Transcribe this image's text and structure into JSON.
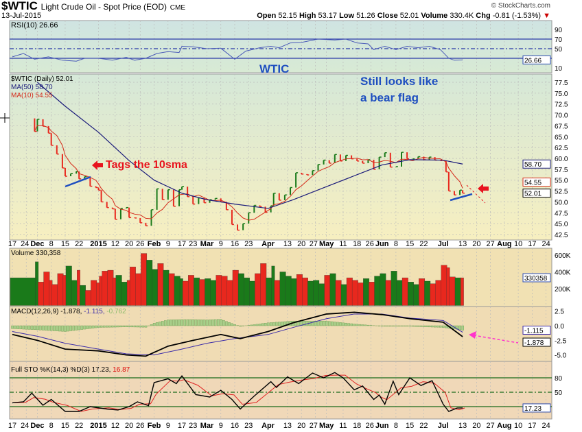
{
  "header": {
    "symbol": "$WTIC",
    "name": "Light Crude Oil - Spot Price (EOD)",
    "exchange": "CME",
    "date": "13-Jul-2015",
    "credit": "© StockCharts.com",
    "open_label": "Open",
    "open": "52.15",
    "high_label": "High",
    "high": "53.17",
    "low_label": "Low",
    "low": "51.26",
    "close_label": "Close",
    "close": "52.01",
    "volume_label": "Volume",
    "volume": "330.4K",
    "chg_label": "Chg",
    "chg": "-0.81 (-1.53%)"
  },
  "annotations": {
    "wtic": "WTIC",
    "bear_flag_1": "Still looks like",
    "bear_flag_2": "a bear flag",
    "tags": "Tags the 10sma"
  },
  "colors": {
    "up": "#1a7a1a",
    "down": "#e8281e",
    "ma50": "#1a1a7a",
    "ma10": "#d42a1a",
    "rsi": "#4a5ab8",
    "annotation_blue": "#1f4fc0",
    "annotation_red": "#e8141e",
    "arrow_magenta": "#ff33cc"
  },
  "chart_data": {
    "type": "line",
    "x_ticks": [
      [
        "2014-11-17",
        "17",
        false
      ],
      [
        "2014-11-24",
        "24",
        false
      ],
      [
        "2014-12-01",
        "Dec",
        true
      ],
      [
        "2014-12-08",
        "8",
        false
      ],
      [
        "2014-12-15",
        "15",
        false
      ],
      [
        "2014-12-22",
        "22",
        false
      ],
      [
        "2015-01-02",
        "2015",
        true
      ],
      [
        "2015-01-12",
        "12",
        false
      ],
      [
        "2015-01-20",
        "20",
        false
      ],
      [
        "2015-01-26",
        "26",
        false
      ],
      [
        "2015-02-02",
        "Feb",
        true
      ],
      [
        "2015-02-09",
        "9",
        false
      ],
      [
        "2015-02-17",
        "17",
        false
      ],
      [
        "2015-02-23",
        "23",
        false
      ],
      [
        "2015-03-02",
        "Mar",
        true
      ],
      [
        "2015-03-09",
        "9",
        false
      ],
      [
        "2015-03-16",
        "16",
        false
      ],
      [
        "2015-03-23",
        "23",
        false
      ],
      [
        "2015-04-01",
        "Apr",
        true
      ],
      [
        "2015-04-13",
        "13",
        false
      ],
      [
        "2015-04-20",
        "20",
        false
      ],
      [
        "2015-04-27",
        "27",
        false
      ],
      [
        "2015-05-01",
        "May",
        true
      ],
      [
        "2015-05-11",
        "11",
        false
      ],
      [
        "2015-05-18",
        "18",
        false
      ],
      [
        "2015-05-26",
        "26",
        false
      ],
      [
        "2015-06-01",
        "Jun",
        true
      ],
      [
        "2015-06-08",
        "8",
        false
      ],
      [
        "2015-06-15",
        "15",
        false
      ],
      [
        "2015-06-22",
        "22",
        false
      ],
      [
        "2015-07-01",
        "Jul",
        true
      ],
      [
        "2015-07-13",
        "13",
        false
      ],
      [
        "2015-07-20",
        "20",
        false
      ],
      [
        "2015-07-27",
        "27",
        false
      ],
      [
        "2015-08-03",
        "Aug",
        true
      ],
      [
        "2015-08-10",
        "10",
        false
      ],
      [
        "2015-08-17",
        "17",
        false
      ],
      [
        "2015-08-24",
        "24",
        false
      ]
    ],
    "rsi": {
      "legend": "RSI(10) 26.66",
      "last": "26.66",
      "ticks": [
        "90",
        "70",
        "50",
        "10"
      ],
      "levels": [
        70,
        50,
        30
      ],
      "ylim": [
        0,
        100
      ],
      "points": [
        [
          "2014-11-17",
          33
        ],
        [
          "2014-11-21",
          40
        ],
        [
          "2014-11-28",
          28
        ],
        [
          "2014-12-05",
          33
        ],
        [
          "2014-12-12",
          26
        ],
        [
          "2014-12-19",
          24
        ],
        [
          "2014-12-24",
          30
        ],
        [
          "2015-01-02",
          30
        ],
        [
          "2015-01-09",
          26
        ],
        [
          "2015-01-16",
          32
        ],
        [
          "2015-01-22",
          26
        ],
        [
          "2015-01-28",
          30
        ],
        [
          "2015-02-03",
          40
        ],
        [
          "2015-02-09",
          44
        ],
        [
          "2015-02-13",
          42
        ],
        [
          "2015-02-17",
          55
        ],
        [
          "2015-02-23",
          54
        ],
        [
          "2015-03-02",
          50
        ],
        [
          "2015-03-09",
          51
        ],
        [
          "2015-03-16",
          28
        ],
        [
          "2015-03-20",
          45
        ],
        [
          "2015-03-27",
          52
        ],
        [
          "2015-04-02",
          55
        ],
        [
          "2015-04-08",
          52
        ],
        [
          "2015-04-14",
          62
        ],
        [
          "2015-04-20",
          63
        ],
        [
          "2015-04-28",
          70
        ],
        [
          "2015-05-06",
          68
        ],
        [
          "2015-05-12",
          70
        ],
        [
          "2015-05-18",
          62
        ],
        [
          "2015-05-22",
          60
        ],
        [
          "2015-05-27",
          48
        ],
        [
          "2015-06-02",
          55
        ],
        [
          "2015-06-08",
          48
        ],
        [
          "2015-06-12",
          55
        ],
        [
          "2015-06-18",
          52
        ],
        [
          "2015-06-24",
          55
        ],
        [
          "2015-06-30",
          48
        ],
        [
          "2015-07-06",
          30
        ],
        [
          "2015-07-08",
          26
        ],
        [
          "2015-07-13",
          26.66
        ]
      ]
    },
    "price": {
      "legend": "$WTIC (Daily) 52.01",
      "ma50_legend": "MA(50) 58.70",
      "ma10_legend": "MA(10) 54.55",
      "last": "52.01",
      "ma50_last": "58.70",
      "ma10_last": "54.55",
      "ticks": [
        "77.5",
        "75.0",
        "72.5",
        "70.0",
        "67.5",
        "65.0",
        "62.5",
        "60.0",
        "57.5",
        "55.0",
        "52.5",
        "50.0",
        "47.5",
        "45.0",
        "42.5"
      ],
      "ylim": [
        42.5,
        77.5
      ],
      "close": [
        [
          "2014-11-28",
          66.2
        ],
        [
          "2014-12-01",
          69
        ],
        [
          "2014-12-03",
          67.4
        ],
        [
          "2014-12-05",
          65.8
        ],
        [
          "2014-12-08",
          63
        ],
        [
          "2014-12-10",
          61
        ],
        [
          "2014-12-12",
          57.8
        ],
        [
          "2014-12-15",
          55.9
        ],
        [
          "2014-12-17",
          56.5
        ],
        [
          "2014-12-19",
          57
        ],
        [
          "2014-12-22",
          55.3
        ],
        [
          "2014-12-24",
          55.8
        ],
        [
          "2014-12-29",
          53.6
        ],
        [
          "2014-12-31",
          53.3
        ],
        [
          "2015-01-02",
          52.7
        ],
        [
          "2015-01-05",
          50
        ],
        [
          "2015-01-07",
          48.7
        ],
        [
          "2015-01-09",
          48.4
        ],
        [
          "2015-01-12",
          46
        ],
        [
          "2015-01-14",
          48.5
        ],
        [
          "2015-01-16",
          48.7
        ],
        [
          "2015-01-20",
          46.4
        ],
        [
          "2015-01-22",
          46.3
        ],
        [
          "2015-01-26",
          45.2
        ],
        [
          "2015-01-28",
          44.5
        ],
        [
          "2015-01-30",
          48.2
        ],
        [
          "2015-02-03",
          53
        ],
        [
          "2015-02-05",
          50.5
        ],
        [
          "2015-02-09",
          52.8
        ],
        [
          "2015-02-11",
          49
        ],
        [
          "2015-02-13",
          52.8
        ],
        [
          "2015-02-17",
          53.5
        ],
        [
          "2015-02-19",
          51.2
        ],
        [
          "2015-02-23",
          49.5
        ],
        [
          "2015-02-25",
          50.9
        ],
        [
          "2015-02-27",
          49.8
        ],
        [
          "2015-03-03",
          50.5
        ],
        [
          "2015-03-05",
          50.8
        ],
        [
          "2015-03-09",
          50
        ],
        [
          "2015-03-11",
          48.2
        ],
        [
          "2015-03-13",
          44.8
        ],
        [
          "2015-03-17",
          43.5
        ],
        [
          "2015-03-19",
          45
        ],
        [
          "2015-03-23",
          47.5
        ],
        [
          "2015-03-25",
          49.2
        ],
        [
          "2015-03-27",
          48.9
        ],
        [
          "2015-03-31",
          47.6
        ],
        [
          "2015-04-02",
          49.1
        ],
        [
          "2015-04-06",
          52
        ],
        [
          "2015-04-08",
          50.4
        ],
        [
          "2015-04-10",
          51.6
        ],
        [
          "2015-04-14",
          53.3
        ],
        [
          "2015-04-16",
          56.7
        ],
        [
          "2015-04-20",
          56.4
        ],
        [
          "2015-04-22",
          56.2
        ],
        [
          "2015-04-24",
          57.2
        ],
        [
          "2015-04-28",
          58.6
        ],
        [
          "2015-04-30",
          59.6
        ],
        [
          "2015-05-04",
          58.9
        ],
        [
          "2015-05-06",
          60.9
        ],
        [
          "2015-05-08",
          59.4
        ],
        [
          "2015-05-12",
          60.7
        ],
        [
          "2015-05-14",
          59.9
        ],
        [
          "2015-05-18",
          59.4
        ],
        [
          "2015-05-20",
          58.9
        ],
        [
          "2015-05-22",
          59.7
        ],
        [
          "2015-05-27",
          57.5
        ],
        [
          "2015-05-29",
          60.3
        ],
        [
          "2015-06-02",
          61.3
        ],
        [
          "2015-06-04",
          58
        ],
        [
          "2015-06-08",
          58.1
        ],
        [
          "2015-06-10",
          61.4
        ],
        [
          "2015-06-12",
          59.9
        ],
        [
          "2015-06-16",
          59.9
        ],
        [
          "2015-06-18",
          60.4
        ],
        [
          "2015-06-22",
          59.7
        ],
        [
          "2015-06-24",
          60.3
        ],
        [
          "2015-06-26",
          59.6
        ],
        [
          "2015-06-30",
          59.5
        ],
        [
          "2015-07-02",
          56.9
        ],
        [
          "2015-07-06",
          52.5
        ],
        [
          "2015-07-08",
          51.6
        ],
        [
          "2015-07-10",
          52.7
        ],
        [
          "2015-07-13",
          52.01
        ]
      ],
      "ma50": [
        [
          "2014-12-01",
          77.5
        ],
        [
          "2014-12-15",
          72
        ],
        [
          "2015-01-02",
          66
        ],
        [
          "2015-01-20",
          59.5
        ],
        [
          "2015-02-02",
          55
        ],
        [
          "2015-02-17",
          52
        ],
        [
          "2015-03-02",
          50.5
        ],
        [
          "2015-03-16",
          49.5
        ],
        [
          "2015-04-01",
          48.5
        ],
        [
          "2015-04-15",
          50.5
        ],
        [
          "2015-05-01",
          53.5
        ],
        [
          "2015-05-15",
          56
        ],
        [
          "2015-06-01",
          58.5
        ],
        [
          "2015-06-15",
          59.7
        ],
        [
          "2015-07-01",
          59.6
        ],
        [
          "2015-07-13",
          58.7
        ]
      ]
    },
    "volume": {
      "legend": "Volume 330,358",
      "last": "330358",
      "ticks": [
        "600K",
        "400K",
        "200K"
      ],
      "ylim": [
        0,
        650000
      ],
      "values_k": [
        330,
        520,
        280,
        400,
        300,
        250,
        380,
        360,
        470,
        300,
        420,
        240,
        180,
        300,
        270,
        350,
        410,
        420,
        330,
        360,
        280,
        300,
        460,
        380,
        620,
        540,
        430,
        500,
        420,
        380,
        350,
        320,
        290,
        360,
        330,
        310,
        320,
        300,
        360,
        350,
        300,
        420,
        380,
        330,
        290,
        380,
        500,
        330,
        470,
        300,
        400,
        350,
        320,
        370,
        330,
        290,
        300,
        260,
        360,
        380,
        300,
        250,
        330,
        300,
        270,
        320,
        280,
        350,
        380,
        300,
        410,
        300,
        330,
        280,
        250,
        320,
        290,
        260,
        300,
        480,
        450,
        340,
        330,
        330
      ]
    },
    "macd": {
      "legend": "MACD(12,26,9) -1.878,",
      "signal_legend": "-1.115,",
      "hist_legend": "-0.762",
      "macd_last": "-1.878",
      "signal_last": "-1.115",
      "ticks": [
        "2.5",
        "0.0",
        "-2.5",
        "-5.0"
      ],
      "ylim": [
        -6,
        3.3
      ],
      "macd": [
        [
          "2014-11-17",
          -1.5
        ],
        [
          "2014-12-01",
          -2.5
        ],
        [
          "2014-12-15",
          -4
        ],
        [
          "2015-01-02",
          -4.3
        ],
        [
          "2015-01-16",
          -5.0
        ],
        [
          "2015-01-28",
          -5.2
        ],
        [
          "2015-02-09",
          -3.5
        ],
        [
          "2015-02-23",
          -2.5
        ],
        [
          "2015-03-09",
          -1.5
        ],
        [
          "2015-03-18",
          -2.2
        ],
        [
          "2015-04-01",
          -1.0
        ],
        [
          "2015-04-15",
          0.5
        ],
        [
          "2015-05-01",
          2.0
        ],
        [
          "2015-05-15",
          2.3
        ],
        [
          "2015-06-01",
          1.9
        ],
        [
          "2015-06-15",
          1.2
        ],
        [
          "2015-07-01",
          0.6
        ],
        [
          "2015-07-13",
          -1.878
        ]
      ],
      "signal": [
        [
          "2014-11-17",
          -1
        ],
        [
          "2014-12-01",
          -1.8
        ],
        [
          "2014-12-15",
          -3
        ],
        [
          "2015-01-02",
          -4.0
        ],
        [
          "2015-01-16",
          -4.8
        ],
        [
          "2015-02-02",
          -5.0
        ],
        [
          "2015-02-17",
          -4.0
        ],
        [
          "2015-03-02",
          -3
        ],
        [
          "2015-03-16",
          -2.2
        ],
        [
          "2015-04-01",
          -1.5
        ],
        [
          "2015-04-15",
          -0.3
        ],
        [
          "2015-05-01",
          1.2
        ],
        [
          "2015-05-15",
          2.0
        ],
        [
          "2015-06-01",
          2.0
        ],
        [
          "2015-06-15",
          1.3
        ],
        [
          "2015-07-01",
          0.9
        ],
        [
          "2015-07-13",
          -1.115
        ]
      ]
    },
    "sto": {
      "legend": "Full STO %K(14,3) %D(3) 17.23,",
      "d_legend": "16.87",
      "last": "17.23",
      "ticks": [
        "80",
        "50"
      ],
      "levels": [
        80,
        50,
        20
      ],
      "ylim": [
        0,
        100
      ],
      "k": [
        [
          "2014-11-17",
          28
        ],
        [
          "2014-11-21",
          30
        ],
        [
          "2014-11-26",
          48
        ],
        [
          "2014-12-03",
          23
        ],
        [
          "2014-12-08",
          35
        ],
        [
          "2014-12-15",
          10
        ],
        [
          "2014-12-22",
          10
        ],
        [
          "2014-12-29",
          20
        ],
        [
          "2015-01-07",
          15
        ],
        [
          "2015-01-13",
          13
        ],
        [
          "2015-01-20",
          20
        ],
        [
          "2015-01-23",
          30
        ],
        [
          "2015-01-29",
          22
        ],
        [
          "2015-02-02",
          70
        ],
        [
          "2015-02-09",
          78
        ],
        [
          "2015-02-12",
          68
        ],
        [
          "2015-02-17",
          84
        ],
        [
          "2015-02-24",
          45
        ],
        [
          "2015-03-03",
          40
        ],
        [
          "2015-03-09",
          54
        ],
        [
          "2015-03-13",
          35
        ],
        [
          "2015-03-18",
          15
        ],
        [
          "2015-03-25",
          42
        ],
        [
          "2015-04-02",
          72
        ],
        [
          "2015-04-07",
          60
        ],
        [
          "2015-04-13",
          82
        ],
        [
          "2015-04-17",
          68
        ],
        [
          "2015-04-24",
          90
        ],
        [
          "2015-04-30",
          80
        ],
        [
          "2015-05-06",
          91
        ],
        [
          "2015-05-11",
          80
        ],
        [
          "2015-05-15",
          55
        ],
        [
          "2015-05-20",
          63
        ],
        [
          "2015-05-27",
          35
        ],
        [
          "2015-05-29",
          44
        ],
        [
          "2015-06-02",
          25
        ],
        [
          "2015-06-05",
          73
        ],
        [
          "2015-06-09",
          45
        ],
        [
          "2015-06-15",
          80
        ],
        [
          "2015-06-19",
          64
        ],
        [
          "2015-06-25",
          74
        ],
        [
          "2015-07-01",
          25
        ],
        [
          "2015-07-06",
          10
        ],
        [
          "2015-07-09",
          17
        ],
        [
          "2015-07-13",
          17.23
        ]
      ]
    }
  }
}
